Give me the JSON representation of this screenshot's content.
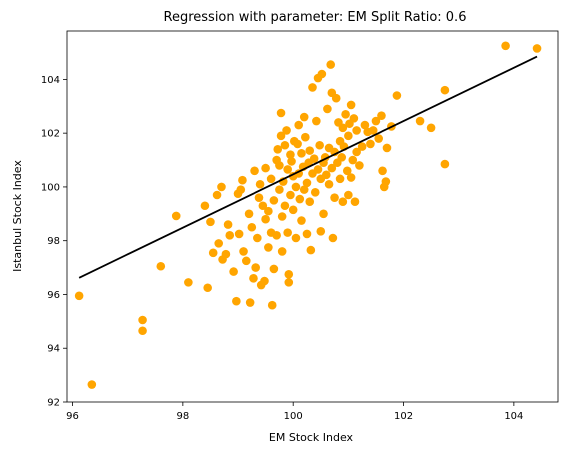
{
  "chart_data": {
    "type": "scatter",
    "title": "Regression with parameter: EM Split Ratio: 0.6",
    "xlabel": "EM Stock Index",
    "ylabel": "Istanbul Stock Index",
    "xlim": [
      95.9,
      104.8
    ],
    "ylim": [
      92.0,
      105.8
    ],
    "xticks": [
      96,
      98,
      100,
      102,
      104
    ],
    "yticks": [
      92,
      94,
      96,
      98,
      100,
      102,
      104
    ],
    "xtick_labels": [
      "96",
      "98",
      "100",
      "102",
      "104"
    ],
    "ytick_labels": [
      "92",
      "94",
      "96",
      "98",
      "100",
      "102",
      "104"
    ],
    "grid": false,
    "colors": {
      "points": "#ffa500",
      "line": "#000000"
    },
    "regression_line": {
      "x": [
        96.12,
        104.42
      ],
      "y": [
        96.62,
        104.85
      ]
    },
    "points": [
      [
        96.12,
        95.95
      ],
      [
        96.35,
        92.65
      ],
      [
        97.27,
        95.05
      ],
      [
        97.27,
        94.65
      ],
      [
        97.6,
        97.05
      ],
      [
        97.88,
        98.92
      ],
      [
        98.1,
        96.45
      ],
      [
        98.4,
        99.3
      ],
      [
        98.45,
        96.25
      ],
      [
        98.5,
        98.7
      ],
      [
        98.55,
        97.55
      ],
      [
        98.62,
        99.7
      ],
      [
        98.65,
        97.9
      ],
      [
        98.7,
        100.0
      ],
      [
        98.72,
        97.3
      ],
      [
        98.78,
        97.5
      ],
      [
        98.82,
        98.6
      ],
      [
        98.85,
        98.2
      ],
      [
        98.92,
        96.85
      ],
      [
        98.97,
        95.75
      ],
      [
        99.0,
        99.75
      ],
      [
        99.02,
        98.25
      ],
      [
        99.05,
        99.9
      ],
      [
        99.08,
        100.25
      ],
      [
        99.1,
        97.6
      ],
      [
        99.15,
        97.25
      ],
      [
        99.2,
        99.0
      ],
      [
        99.22,
        95.7
      ],
      [
        99.25,
        98.5
      ],
      [
        99.28,
        96.6
      ],
      [
        99.3,
        100.6
      ],
      [
        99.32,
        97.0
      ],
      [
        99.35,
        98.1
      ],
      [
        99.38,
        99.6
      ],
      [
        99.4,
        100.1
      ],
      [
        99.42,
        96.35
      ],
      [
        99.45,
        99.3
      ],
      [
        99.48,
        96.5
      ],
      [
        99.5,
        98.8
      ],
      [
        99.5,
        100.7
      ],
      [
        99.55,
        99.1
      ],
      [
        99.55,
        97.75
      ],
      [
        99.6,
        100.3
      ],
      [
        99.6,
        98.3
      ],
      [
        99.62,
        95.6
      ],
      [
        99.65,
        99.5
      ],
      [
        99.65,
        96.95
      ],
      [
        99.7,
        101.0
      ],
      [
        99.7,
        98.2
      ],
      [
        99.72,
        101.4
      ],
      [
        99.75,
        99.9
      ],
      [
        99.75,
        100.8
      ],
      [
        99.78,
        101.9
      ],
      [
        99.78,
        102.75
      ],
      [
        99.8,
        98.9
      ],
      [
        99.8,
        97.6
      ],
      [
        99.82,
        100.2
      ],
      [
        99.85,
        101.55
      ],
      [
        99.85,
        99.3
      ],
      [
        99.88,
        102.1
      ],
      [
        99.9,
        100.65
      ],
      [
        99.9,
        98.3
      ],
      [
        99.92,
        96.75
      ],
      [
        99.92,
        96.45
      ],
      [
        99.95,
        101.2
      ],
      [
        99.95,
        99.7
      ],
      [
        99.97,
        100.95
      ],
      [
        100.0,
        100.4
      ],
      [
        100.0,
        99.15
      ],
      [
        100.02,
        101.7
      ],
      [
        100.05,
        100.0
      ],
      [
        100.05,
        98.1
      ],
      [
        100.08,
        101.6
      ],
      [
        100.1,
        100.5
      ],
      [
        100.1,
        102.3
      ],
      [
        100.12,
        99.55
      ],
      [
        100.15,
        101.25
      ],
      [
        100.15,
        98.75
      ],
      [
        100.18,
        100.75
      ],
      [
        100.2,
        102.6
      ],
      [
        100.2,
        99.9
      ],
      [
        100.22,
        101.85
      ],
      [
        100.25,
        100.15
      ],
      [
        100.25,
        98.25
      ],
      [
        100.28,
        100.9
      ],
      [
        100.3,
        101.35
      ],
      [
        100.3,
        99.45
      ],
      [
        100.32,
        97.65
      ],
      [
        100.35,
        100.5
      ],
      [
        100.35,
        103.7
      ],
      [
        100.38,
        101.05
      ],
      [
        100.4,
        99.8
      ],
      [
        100.42,
        102.45
      ],
      [
        100.45,
        100.65
      ],
      [
        100.45,
        104.05
      ],
      [
        100.48,
        101.55
      ],
      [
        100.5,
        100.3
      ],
      [
        100.5,
        98.35
      ],
      [
        100.52,
        104.2
      ],
      [
        100.55,
        100.9
      ],
      [
        100.55,
        99.0
      ],
      [
        100.58,
        101.1
      ],
      [
        100.6,
        100.45
      ],
      [
        100.62,
        102.9
      ],
      [
        100.65,
        101.45
      ],
      [
        100.65,
        100.1
      ],
      [
        100.68,
        104.55
      ],
      [
        100.7,
        103.5
      ],
      [
        100.7,
        100.7
      ],
      [
        100.72,
        98.1
      ],
      [
        100.75,
        101.3
      ],
      [
        100.75,
        99.6
      ],
      [
        100.78,
        103.3
      ],
      [
        100.8,
        100.9
      ],
      [
        100.82,
        102.4
      ],
      [
        100.85,
        101.7
      ],
      [
        100.85,
        100.3
      ],
      [
        100.88,
        101.1
      ],
      [
        100.9,
        102.2
      ],
      [
        100.9,
        99.45
      ],
      [
        100.92,
        101.5
      ],
      [
        100.95,
        102.7
      ],
      [
        100.98,
        100.6
      ],
      [
        101.0,
        101.9
      ],
      [
        101.0,
        99.7
      ],
      [
        101.02,
        102.35
      ],
      [
        101.05,
        103.05
      ],
      [
        101.05,
        100.35
      ],
      [
        101.08,
        101.0
      ],
      [
        101.1,
        102.55
      ],
      [
        101.12,
        99.45
      ],
      [
        101.15,
        101.3
      ],
      [
        101.15,
        102.1
      ],
      [
        101.2,
        100.8
      ],
      [
        101.25,
        101.5
      ],
      [
        101.3,
        102.3
      ],
      [
        101.35,
        102.05
      ],
      [
        101.4,
        101.6
      ],
      [
        101.45,
        102.1
      ],
      [
        101.5,
        102.45
      ],
      [
        101.55,
        101.8
      ],
      [
        101.6,
        102.65
      ],
      [
        101.62,
        100.6
      ],
      [
        101.65,
        100.0
      ],
      [
        101.68,
        100.2
      ],
      [
        101.7,
        101.45
      ],
      [
        101.78,
        102.25
      ],
      [
        101.88,
        103.4
      ],
      [
        102.3,
        102.45
      ],
      [
        102.5,
        102.2
      ],
      [
        102.75,
        103.6
      ],
      [
        102.75,
        100.85
      ],
      [
        103.85,
        105.25
      ],
      [
        104.42,
        105.15
      ]
    ]
  }
}
